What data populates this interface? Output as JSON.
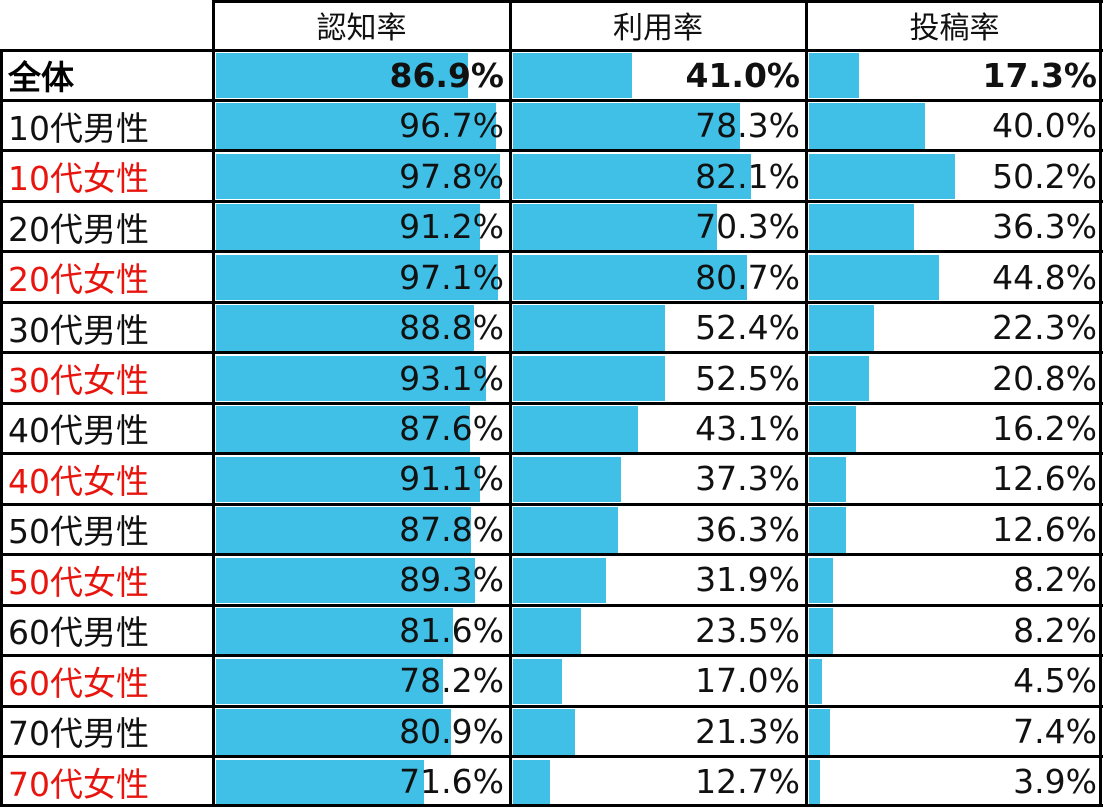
{
  "colors": {
    "bar": "#40c0e6",
    "male_text": "#111111",
    "female_text": "#e8150f",
    "grid": "#000000"
  },
  "table": {
    "headers": [
      "認知率",
      "利用率",
      "投稿率"
    ]
  },
  "chart_data": {
    "type": "table",
    "columns": [
      "認知率",
      "利用率",
      "投稿率"
    ],
    "value_unit": "%",
    "rows": [
      {
        "label": "全体",
        "group": "total",
        "values": [
          86.9,
          41.0,
          17.3
        ],
        "display": [
          "86.9%",
          "41.0%",
          "17.3%"
        ]
      },
      {
        "label": "10代男性",
        "group": "male",
        "values": [
          96.7,
          78.3,
          40.0
        ],
        "display": [
          "96.7%",
          "78.3%",
          "40.0%"
        ]
      },
      {
        "label": "10代女性",
        "group": "female",
        "values": [
          97.8,
          82.1,
          50.2
        ],
        "display": [
          "97.8%",
          "82.1%",
          "50.2%"
        ]
      },
      {
        "label": "20代男性",
        "group": "male",
        "values": [
          91.2,
          70.3,
          36.3
        ],
        "display": [
          "91.2%",
          "70.3%",
          "36.3%"
        ]
      },
      {
        "label": "20代女性",
        "group": "female",
        "values": [
          97.1,
          80.7,
          44.8
        ],
        "display": [
          "97.1%",
          "80.7%",
          "44.8%"
        ]
      },
      {
        "label": "30代男性",
        "group": "male",
        "values": [
          88.8,
          52.4,
          22.3
        ],
        "display": [
          "88.8%",
          "52.4%",
          "22.3%"
        ]
      },
      {
        "label": "30代女性",
        "group": "female",
        "values": [
          93.1,
          52.5,
          20.8
        ],
        "display": [
          "93.1%",
          "52.5%",
          "20.8%"
        ]
      },
      {
        "label": "40代男性",
        "group": "male",
        "values": [
          87.6,
          43.1,
          16.2
        ],
        "display": [
          "87.6%",
          "43.1%",
          "16.2%"
        ]
      },
      {
        "label": "40代女性",
        "group": "female",
        "values": [
          91.1,
          37.3,
          12.6
        ],
        "display": [
          "91.1%",
          "37.3%",
          "12.6%"
        ]
      },
      {
        "label": "50代男性",
        "group": "male",
        "values": [
          87.8,
          36.3,
          12.6
        ],
        "display": [
          "87.8%",
          "36.3%",
          "12.6%"
        ]
      },
      {
        "label": "50代女性",
        "group": "female",
        "values": [
          89.3,
          31.9,
          8.2
        ],
        "display": [
          "89.3%",
          "31.9%",
          "8.2%"
        ]
      },
      {
        "label": "60代男性",
        "group": "male",
        "values": [
          81.6,
          23.5,
          8.2
        ],
        "display": [
          "81.6%",
          "23.5%",
          "8.2%"
        ]
      },
      {
        "label": "60代女性",
        "group": "female",
        "values": [
          78.2,
          17.0,
          4.5
        ],
        "display": [
          "78.2%",
          "17.0%",
          "4.5%"
        ]
      },
      {
        "label": "70代男性",
        "group": "male",
        "values": [
          80.9,
          21.3,
          7.4
        ],
        "display": [
          "80.9%",
          "21.3%",
          "7.4%"
        ]
      },
      {
        "label": "70代女性",
        "group": "female",
        "values": [
          71.6,
          12.7,
          3.9
        ],
        "display": [
          "71.6%",
          "12.7%",
          "3.9%"
        ]
      }
    ]
  }
}
